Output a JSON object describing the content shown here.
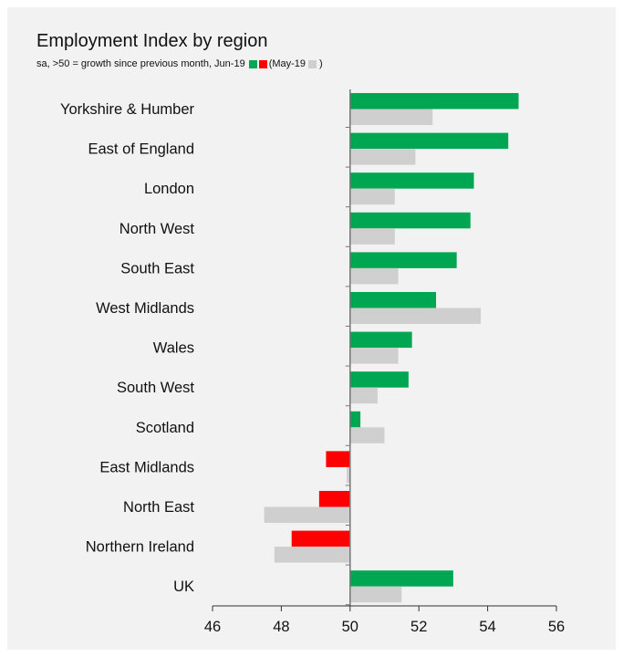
{
  "colors": {
    "background": "#f2f2f2",
    "growth": "#00a651",
    "decline": "#ff0000",
    "previous": "#cfcfcf",
    "axis": "#777777"
  },
  "chart_data": {
    "type": "bar",
    "orientation": "horizontal",
    "title": "Employment Index by region",
    "subtitle_text": "sa, >50 = growth since previous month, Jun-19",
    "subtitle_open": "(May-19",
    "subtitle_close": ")",
    "categories": [
      "Yorkshire & Humber",
      "East of England",
      "London",
      "North West",
      "South East",
      "West Midlands",
      "Wales",
      "South West",
      "Scotland",
      "East Midlands",
      "North East",
      "Northern Ireland",
      "UK"
    ],
    "series": [
      {
        "name": "Jun-19",
        "values": [
          54.9,
          54.6,
          53.6,
          53.5,
          53.1,
          52.5,
          51.8,
          51.7,
          50.3,
          49.3,
          49.1,
          48.3,
          53.0
        ]
      },
      {
        "name": "May-19",
        "values": [
          52.4,
          51.9,
          51.3,
          51.3,
          51.4,
          53.8,
          51.4,
          50.8,
          51.0,
          49.9,
          47.5,
          47.8,
          51.5
        ]
      }
    ],
    "baseline": 50,
    "xlim": [
      46,
      56
    ],
    "xticks": [
      46,
      48,
      50,
      52,
      54,
      56
    ],
    "grid": false,
    "legend": "inline in subtitle"
  }
}
